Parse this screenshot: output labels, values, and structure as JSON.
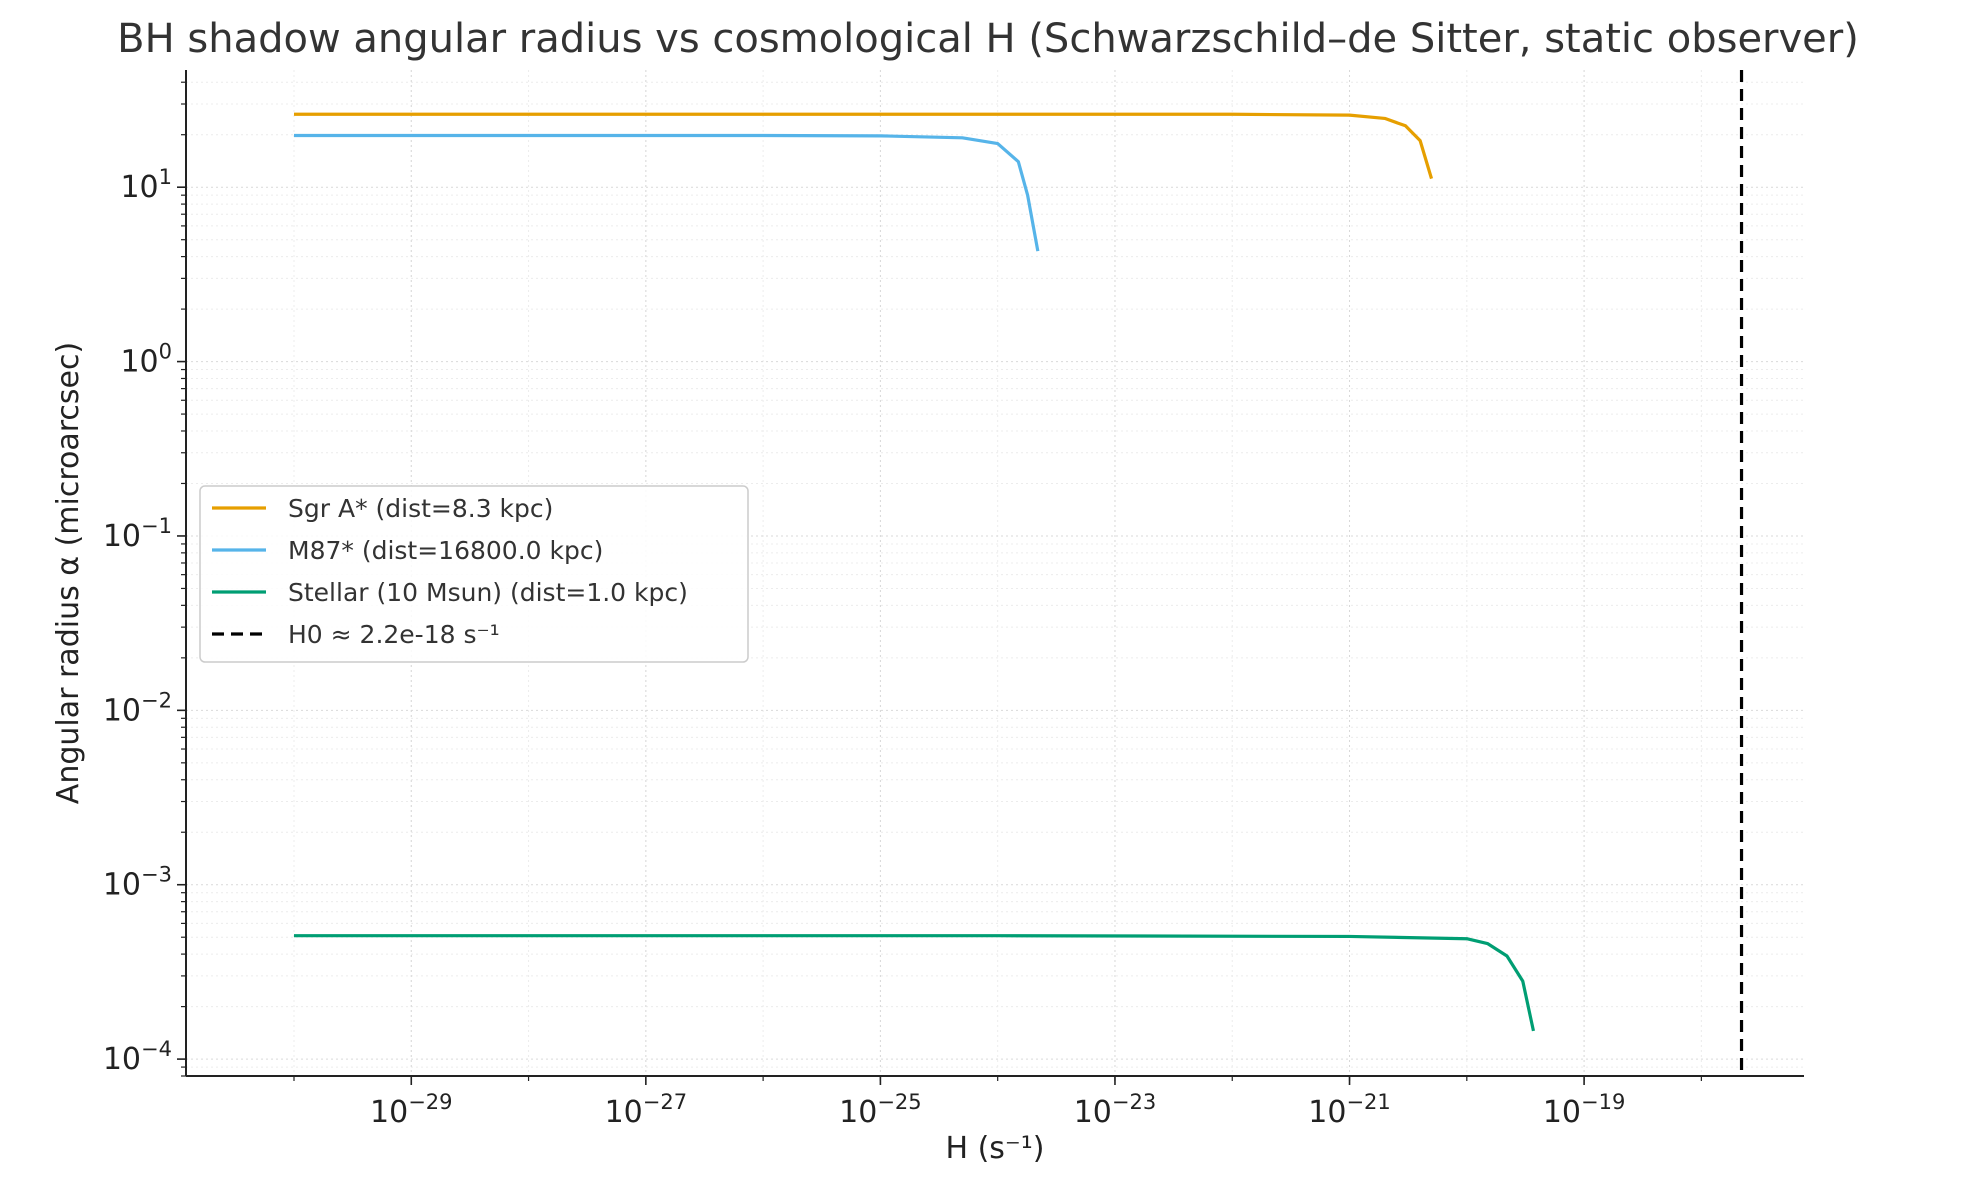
{
  "chart_data": {
    "type": "line",
    "title": "BH shadow angular radius vs cosmological H (Schwarzschild–de Sitter, static observer)",
    "xlabel": "H (s⁻¹)",
    "ylabel": "Angular radius α (microarcsec)",
    "x_scale": "log",
    "y_scale": "log",
    "xlim": [
      1.2e-31,
      7.5e-18
    ],
    "ylim": [
      8e-05,
      47
    ],
    "grid": true,
    "legend_position": "center-left",
    "x_ticks": [
      {
        "value": 1e-29,
        "base": "10",
        "exp": "−29"
      },
      {
        "value": 1e-27,
        "base": "10",
        "exp": "−27"
      },
      {
        "value": 1e-25,
        "base": "10",
        "exp": "−25"
      },
      {
        "value": 1e-23,
        "base": "10",
        "exp": "−23"
      },
      {
        "value": 1e-21,
        "base": "10",
        "exp": "−21"
      },
      {
        "value": 1e-19,
        "base": "10",
        "exp": "−19"
      }
    ],
    "y_ticks": [
      {
        "value": 10,
        "base": "10",
        "exp": "1"
      },
      {
        "value": 1,
        "base": "10",
        "exp": "0"
      },
      {
        "value": 0.1,
        "base": "10",
        "exp": "−1"
      },
      {
        "value": 0.01,
        "base": "10",
        "exp": "−2"
      },
      {
        "value": 0.001,
        "base": "10",
        "exp": "−3"
      },
      {
        "value": 0.0001,
        "base": "10",
        "exp": "−4"
      }
    ],
    "series": [
      {
        "name": "Sgr A* (dist=8.3 kpc)",
        "color": "#E69F00",
        "style": "solid",
        "points": [
          [
            1e-30,
            26.2
          ],
          [
            1e-26,
            26.2
          ],
          [
            1e-22,
            26.2
          ],
          [
            1e-21,
            25.9
          ],
          [
            2e-21,
            24.8
          ],
          [
            3e-21,
            22.5
          ],
          [
            4e-21,
            18.5
          ],
          [
            5e-21,
            11.2
          ]
        ]
      },
      {
        "name": "M87* (dist=16800.0 kpc)",
        "color": "#56B4E9",
        "style": "solid",
        "points": [
          [
            1e-30,
            19.8
          ],
          [
            1e-26,
            19.8
          ],
          [
            1e-25,
            19.7
          ],
          [
            5e-25,
            19.2
          ],
          [
            1e-24,
            17.8
          ],
          [
            1.5e-24,
            14.0
          ],
          [
            1.8e-24,
            9.0
          ],
          [
            2.2e-24,
            4.3
          ]
        ]
      },
      {
        "name": "Stellar (10 Msun) (dist=1.0 kpc)",
        "color": "#009E73",
        "style": "solid",
        "points": [
          [
            1e-30,
            0.00051
          ],
          [
            1e-24,
            0.00051
          ],
          [
            1e-21,
            0.000505
          ],
          [
            1e-20,
            0.00049
          ],
          [
            1.5e-20,
            0.00046
          ],
          [
            2.2e-20,
            0.00039
          ],
          [
            3e-20,
            0.00028
          ],
          [
            3.7e-20,
            0.000145
          ]
        ]
      },
      {
        "name": "H0 ≈ 2.2e-18 s⁻¹",
        "color": "#000000",
        "style": "dashed",
        "vline": 2.2e-18
      }
    ]
  }
}
